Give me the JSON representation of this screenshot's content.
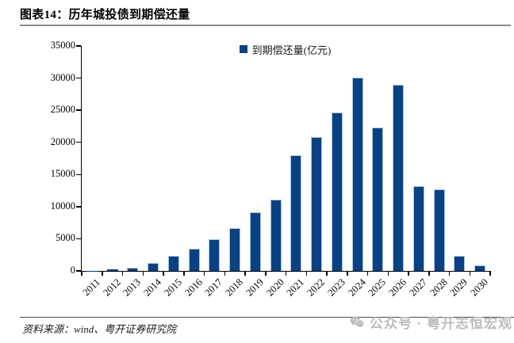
{
  "header": {
    "title": "图表14：历年城投债到期偿还量"
  },
  "legend": {
    "label": "到期偿还量(亿元)"
  },
  "footer": {
    "source_note": "资料来源：wind、粤开证券研究院"
  },
  "watermark": {
    "icon": "wechat-icon",
    "text": "公众号 · 粤开志恒宏观"
  },
  "colors": {
    "bar_fill": "#0A4182",
    "bar_edge": "#A9C4E0",
    "axis": "#000000",
    "title_rule": "#8C8C8C",
    "watermark": "#BCBCBC"
  },
  "chart_data": {
    "type": "bar",
    "title": "图表14：历年城投债到期偿还量",
    "legend_entries": [
      "到期偿还量(亿元)"
    ],
    "legend_position": "top-center",
    "categories": [
      "2011",
      "2012",
      "2013",
      "2014",
      "2015",
      "2016",
      "2017",
      "2018",
      "2019",
      "2020",
      "2021",
      "2022",
      "2023",
      "2024",
      "2025",
      "2026",
      "2027",
      "2028",
      "2029",
      "2030"
    ],
    "values": [
      30,
      200,
      500,
      1200,
      2400,
      3500,
      4900,
      6700,
      9100,
      11100,
      18000,
      20800,
      24700,
      30100,
      22300,
      29000,
      13200,
      12700,
      2300,
      900
    ],
    "xlabel": "",
    "ylabel": "",
    "ylim": [
      0,
      35000
    ],
    "yticks": [
      0,
      5000,
      10000,
      15000,
      20000,
      25000,
      30000,
      35000
    ],
    "grid": false,
    "bar_color": "#0A4182"
  }
}
